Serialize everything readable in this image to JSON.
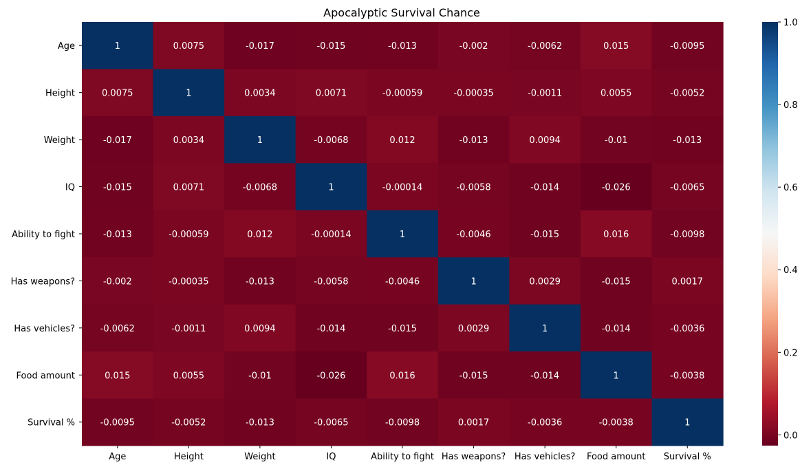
{
  "chart_data": {
    "type": "heatmap",
    "title": "Apocalyptic Survival Chance",
    "xlabel": "",
    "ylabel": "",
    "x_labels": [
      "Age",
      "Height",
      "Weight",
      "IQ",
      "Ability to fight",
      "Has weapons?",
      "Has vehicles?",
      "Food amount",
      "Survival %"
    ],
    "y_labels": [
      "Age",
      "Height",
      "Weight",
      "IQ",
      "Ability to fight",
      "Has weapons?",
      "Has vehicles?",
      "Food amount",
      "Survival %"
    ],
    "values": [
      [
        1,
        0.0075,
        -0.017,
        -0.015,
        -0.013,
        -0.002,
        -0.0062,
        0.015,
        -0.0095
      ],
      [
        0.0075,
        1,
        0.0034,
        0.0071,
        -0.00059,
        -0.00035,
        -0.0011,
        0.0055,
        -0.0052
      ],
      [
        -0.017,
        0.0034,
        1,
        -0.0068,
        0.012,
        -0.013,
        0.0094,
        -0.01,
        -0.013
      ],
      [
        -0.015,
        0.0071,
        -0.0068,
        1,
        -0.00014,
        -0.0058,
        -0.014,
        -0.026,
        -0.0065
      ],
      [
        -0.013,
        -0.00059,
        0.012,
        -0.00014,
        1,
        -0.0046,
        -0.015,
        0.016,
        -0.0098
      ],
      [
        -0.002,
        -0.00035,
        -0.013,
        -0.0058,
        -0.0046,
        1,
        0.0029,
        -0.015,
        0.0017
      ],
      [
        -0.0062,
        -0.0011,
        0.0094,
        -0.014,
        -0.015,
        0.0029,
        1,
        -0.014,
        -0.0036
      ],
      [
        0.015,
        0.0055,
        -0.01,
        -0.026,
        0.016,
        -0.015,
        -0.014,
        1,
        -0.0038
      ],
      [
        -0.0095,
        -0.0052,
        -0.013,
        -0.0065,
        -0.0098,
        0.0017,
        -0.0036,
        -0.0038,
        1
      ]
    ],
    "value_labels": [
      [
        "1",
        "0.0075",
        "-0.017",
        "-0.015",
        "-0.013",
        "-0.002",
        "-0.0062",
        "0.015",
        "-0.0095"
      ],
      [
        "0.0075",
        "1",
        "0.0034",
        "0.0071",
        "-0.00059",
        "-0.00035",
        "-0.0011",
        "0.0055",
        "-0.0052"
      ],
      [
        "-0.017",
        "0.0034",
        "1",
        "-0.0068",
        "0.012",
        "-0.013",
        "0.0094",
        "-0.01",
        "-0.013"
      ],
      [
        "-0.015",
        "0.0071",
        "-0.0068",
        "1",
        "-0.00014",
        "-0.0058",
        "-0.014",
        "-0.026",
        "-0.0065"
      ],
      [
        "-0.013",
        "-0.00059",
        "0.012",
        "-0.00014",
        "1",
        "-0.0046",
        "-0.015",
        "0.016",
        "-0.0098"
      ],
      [
        "-0.002",
        "-0.00035",
        "-0.013",
        "-0.0058",
        "-0.0046",
        "1",
        "0.0029",
        "-0.015",
        "0.0017"
      ],
      [
        "-0.0062",
        "-0.0011",
        "0.0094",
        "-0.014",
        "-0.015",
        "0.0029",
        "1",
        "-0.014",
        "-0.0036"
      ],
      [
        "0.015",
        "0.0055",
        "-0.01",
        "-0.026",
        "0.016",
        "-0.015",
        "-0.014",
        "1",
        "-0.0038"
      ],
      [
        "-0.0095",
        "-0.0052",
        "-0.013",
        "-0.0065",
        "-0.0098",
        "0.0017",
        "-0.0036",
        "-0.0038",
        "1"
      ]
    ],
    "colormap": "RdBu",
    "colorbar": {
      "vmin": -0.026,
      "vmax": 1,
      "ticks": [
        0.0,
        0.2,
        0.4,
        0.6,
        0.8,
        1.0
      ],
      "tick_labels": [
        "0.0",
        "0.2",
        "0.4",
        "0.6",
        "0.8",
        "1.0"
      ]
    },
    "grid": false,
    "legend": "colorbar-right"
  }
}
